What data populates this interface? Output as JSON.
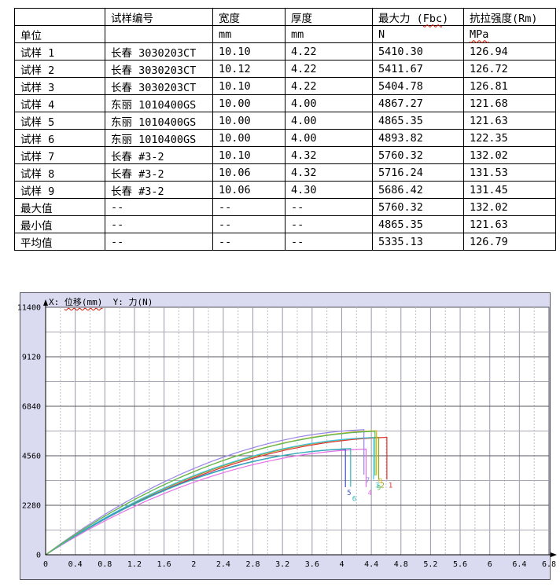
{
  "table": {
    "headers": [
      "",
      "试样编号",
      "宽度",
      "厚度",
      "最大力 (Fbc)",
      "抗拉强度(Rm)"
    ],
    "squiggle_words": [
      "Fbc",
      "MPa"
    ],
    "rows": [
      [
        "单位",
        "",
        "",
        "",
        "",
        ""
      ],
      [
        "试样 1",
        "长春 3030203CT",
        "10.10",
        "4.22",
        "5410.30",
        "126.94"
      ],
      [
        "试样 2",
        "长春 3030203CT",
        "10.12",
        "4.22",
        "5411.67",
        "126.72"
      ],
      [
        "试样 3",
        "长春 3030203CT",
        "10.10",
        "4.22",
        "5404.78",
        "126.81"
      ],
      [
        "试样 4",
        "东丽 1010400GS",
        "10.00",
        "4.00",
        "4867.27",
        "121.68"
      ],
      [
        "试样 5",
        "东丽 1010400GS",
        "10.00",
        "4.00",
        "4865.35",
        "121.63"
      ],
      [
        "试样 6",
        "东丽 1010400GS",
        "10.00",
        "4.00",
        "4893.82",
        "122.35"
      ],
      [
        "试样 7",
        "长春 #3-2",
        "10.10",
        "4.32",
        "5760.32",
        "132.02"
      ],
      [
        "试样 8",
        "长春 #3-2",
        "10.06",
        "4.32",
        "5716.24",
        "131.53"
      ],
      [
        "试样 9",
        "长春 #3-2",
        "10.06",
        "4.30",
        "5686.42",
        "131.45"
      ],
      [
        "最大值",
        "--",
        "--",
        "--",
        "5760.32",
        "132.02"
      ],
      [
        "最小值",
        "--",
        "--",
        "--",
        "4865.35",
        "121.63"
      ],
      [
        "平均值",
        "--",
        "--",
        "--",
        "5335.13",
        "126.79"
      ]
    ],
    "unit_row": [
      "单位",
      "",
      "mm",
      "mm",
      "N",
      "MPa"
    ]
  },
  "chart_data": {
    "type": "line",
    "title_prefix": "X: ",
    "title_x_term": "位移(mm)",
    "title_rest": "  Y: 力(N)",
    "xlabel": "位移(mm)",
    "ylabel": "力(N)",
    "xlim": [
      0,
      6.8
    ],
    "ylim": [
      0,
      11400
    ],
    "x_major_step": 0.4,
    "x_minor_step": 0.2,
    "y_major_step": 2280,
    "y_minor_step": 1140,
    "x_ticks": [
      "0",
      "0.4",
      "0.8",
      "1.2",
      "1.6",
      "2",
      "2.4",
      "2.8",
      "3.2",
      "3.6",
      "4",
      "4.4",
      "4.8",
      "5.2",
      "5.6",
      "6",
      "6.4",
      "6.8"
    ],
    "y_ticks": [
      "0",
      "2280",
      "4560",
      "6840",
      "9120",
      "11400"
    ],
    "grid": true,
    "legend": "curve-end-labels",
    "series": [
      {
        "name": "1",
        "color": "#e03333",
        "fmax": 5410.3,
        "break_x": 4.61,
        "label_dy": 0
      },
      {
        "name": "2",
        "color": "#8f9f20",
        "fmax": 5411.67,
        "break_x": 4.5,
        "label_dy": 0
      },
      {
        "name": "3",
        "color": "#40c4e8",
        "fmax": 5404.78,
        "break_x": 4.43,
        "label_dy": 0
      },
      {
        "name": "4",
        "color": "#e570e5",
        "fmax": 4867.27,
        "break_x": 4.33,
        "label_dy": 0
      },
      {
        "name": "5",
        "color": "#3b52c4",
        "fmax": 4865.35,
        "break_x": 4.05,
        "label_dy": 0
      },
      {
        "name": "6",
        "color": "#35b8b8",
        "fmax": 4893.82,
        "break_x": 4.12,
        "label_dy": 8
      },
      {
        "name": "7",
        "color": "#9a86e8",
        "fmax": 5760.32,
        "break_x": 4.3,
        "label_dy": 0
      },
      {
        "name": "8",
        "color": "#d4b520",
        "fmax": 5716.24,
        "break_x": 4.47,
        "label_dy": 0
      },
      {
        "name": "9",
        "color": "#58b858",
        "fmax": 5686.42,
        "break_x": 4.45,
        "label_dy": 8
      }
    ]
  }
}
